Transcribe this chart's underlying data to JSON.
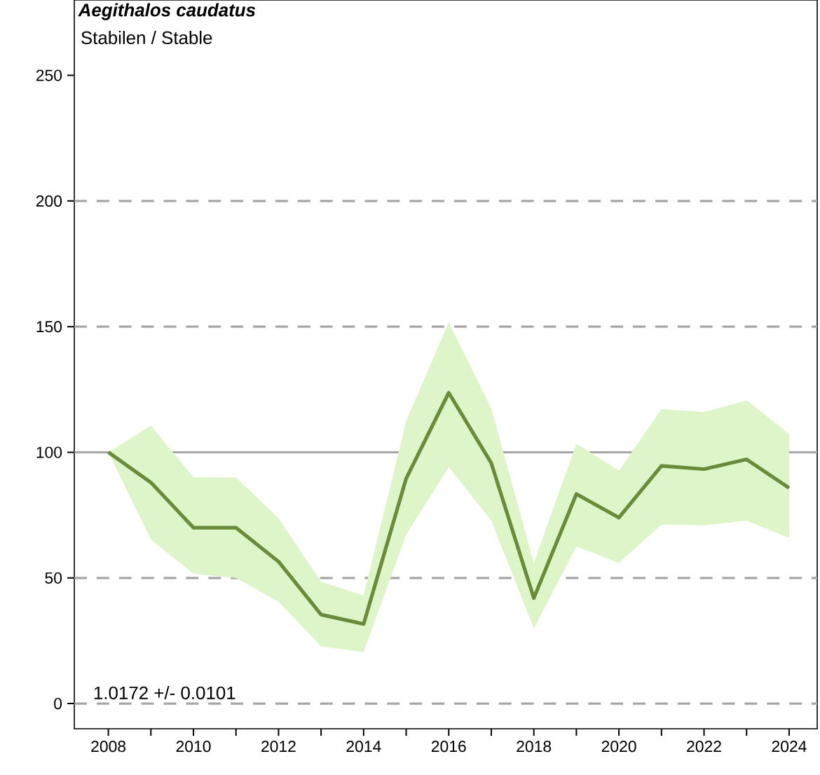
{
  "chart_data": {
    "type": "line",
    "title": "Aegithalos caudatus",
    "subtitle": "Stabilen / Stable",
    "annotations": [
      "1.0172 +/- 0.0101"
    ],
    "x": [
      2008,
      2009,
      2010,
      2011,
      2012,
      2013,
      2014,
      2015,
      2016,
      2017,
      2018,
      2019,
      2020,
      2021,
      2022,
      2023,
      2024
    ],
    "series": [
      {
        "color": "#6a8c3a",
        "values": [
          100,
          88,
          70,
          70,
          56.5,
          35.4,
          31.7,
          89.6,
          123.7,
          95.7,
          42,
          83.4,
          74,
          94.6,
          93.3,
          97.2,
          85.8
        ],
        "lower": [
          100,
          65.3,
          51.7,
          50,
          40.5,
          22.8,
          20.5,
          67.2,
          94.2,
          72.8,
          29.9,
          62.5,
          56,
          71.3,
          70.9,
          72.8,
          65.9
        ],
        "upper": [
          100,
          110.6,
          90,
          90,
          73.7,
          48.5,
          43,
          112.5,
          151.7,
          117.5,
          56,
          103.5,
          92.7,
          117.2,
          116,
          120.7,
          107.3
        ]
      }
    ],
    "xlim": [
      2007.2,
      2024.66
    ],
    "ylim": [
      -10,
      280
    ],
    "xticks": [
      2008,
      {
        "value": 2009,
        "label": null
      },
      2010,
      {
        "value": 2011,
        "label": null
      },
      2012,
      {
        "value": 2013,
        "label": null
      },
      2014,
      {
        "value": 2015,
        "label": null
      },
      2016,
      {
        "value": 2017,
        "label": null
      },
      2018,
      {
        "value": 2019,
        "label": null
      },
      2020,
      {
        "value": 2021,
        "label": null
      },
      2022,
      {
        "value": 2023,
        "label": null
      },
      2024
    ],
    "yticks": [
      0,
      50,
      100,
      150,
      200,
      250
    ],
    "ref_lines": [
      {
        "axis": "y",
        "value": 0,
        "color": "#a6a6a6",
        "line_style": "dashed"
      },
      {
        "axis": "y",
        "value": 50,
        "color": "#a6a6a6",
        "line_style": "dashed"
      },
      {
        "axis": "y",
        "value": 100,
        "color": "#a6a6a6",
        "line_style": "solid"
      },
      {
        "axis": "y",
        "value": 150,
        "color": "#a6a6a6",
        "line_style": "dashed"
      },
      {
        "axis": "y",
        "value": 200,
        "color": "#a6a6a6",
        "line_style": "dashed"
      }
    ],
    "line_style": "solid",
    "marker": "none",
    "grid": false
  }
}
